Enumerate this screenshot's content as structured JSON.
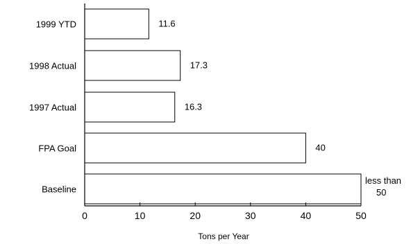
{
  "chart_data": {
    "type": "bar",
    "orientation": "horizontal",
    "title": "",
    "xlabel": "Tons per Year",
    "ylabel": "",
    "xlim": [
      0,
      50
    ],
    "xticks": [
      0,
      10,
      20,
      30,
      40,
      50
    ],
    "grid": false,
    "categories": [
      "1999 YTD",
      "1998 Actual",
      "1997 Actual",
      "FPA Goal",
      "Baseline"
    ],
    "values": [
      11.6,
      17.3,
      16.3,
      40,
      50
    ],
    "data_labels": [
      "11.6",
      "17.3",
      "16.3",
      "40",
      "less than\n50"
    ],
    "colors": {
      "bar_fill": "#ffffff",
      "bar_stroke": "#000000",
      "text": "#000000"
    }
  }
}
